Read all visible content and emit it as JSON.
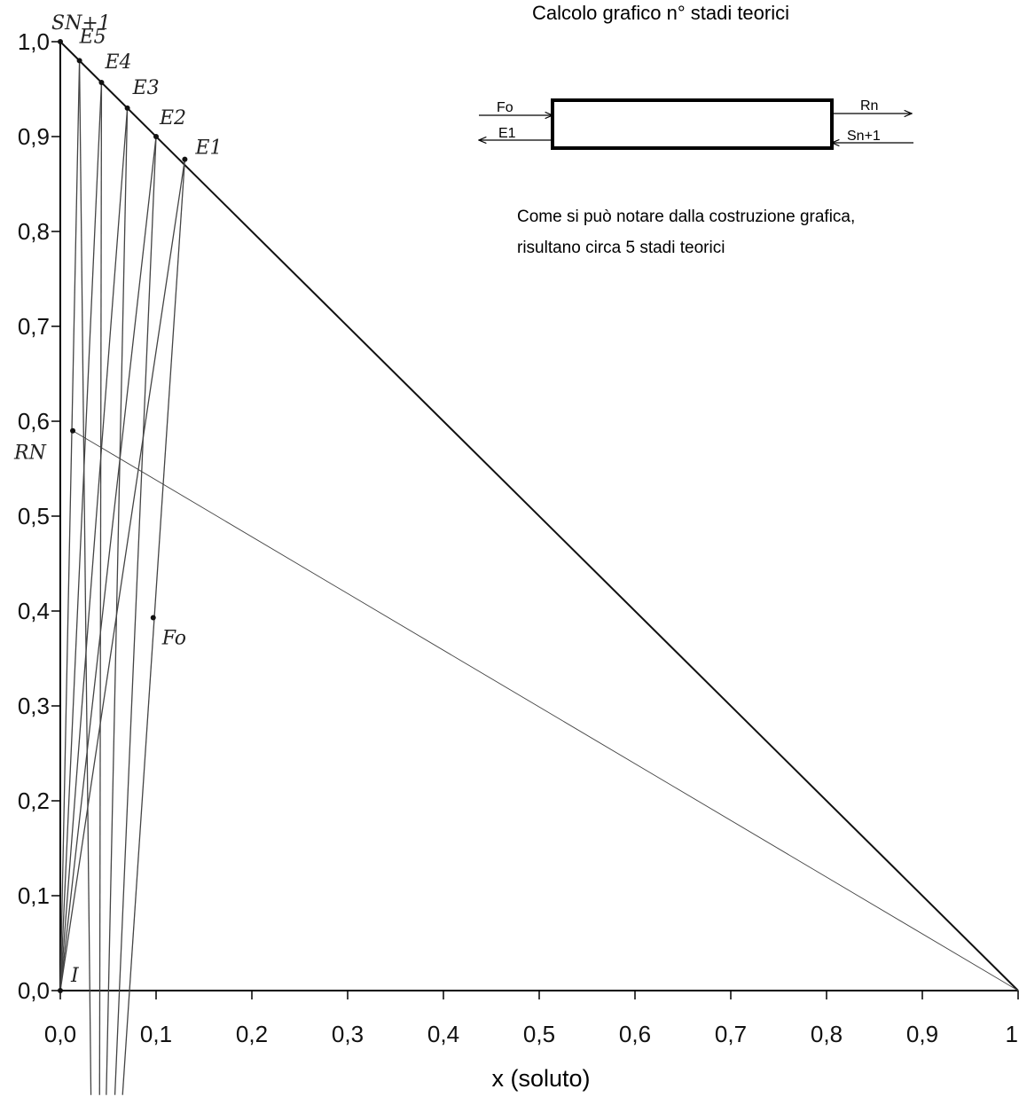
{
  "chart_data": {
    "type": "construction",
    "title": "Calcolo grafico n° stadi teorici",
    "xlabel": "x (soluto)",
    "xlim": [
      0,
      1
    ],
    "ylim": [
      0,
      1
    ],
    "xticks": [
      {
        "value": 0,
        "label": "0,0"
      },
      {
        "value": 0.1,
        "label": "0,1"
      },
      {
        "value": 0.2,
        "label": "0,2"
      },
      {
        "value": 0.3,
        "label": "0,3"
      },
      {
        "value": 0.4,
        "label": "0,4"
      },
      {
        "value": 0.5,
        "label": "0,5"
      },
      {
        "value": 0.6,
        "label": "0,6"
      },
      {
        "value": 0.7,
        "label": "0,7"
      },
      {
        "value": 0.8,
        "label": "0,8"
      },
      {
        "value": 0.9,
        "label": "0,9"
      },
      1
    ],
    "yticks": [
      {
        "value": 0,
        "label": "0,0"
      },
      {
        "value": 0.1,
        "label": "0,1"
      },
      {
        "value": 0.2,
        "label": "0,2"
      },
      {
        "value": 0.3,
        "label": "0,3"
      },
      {
        "value": 0.4,
        "label": "0,4"
      },
      {
        "value": 0.5,
        "label": "0,5"
      },
      {
        "value": 0.6,
        "label": "0,6"
      },
      {
        "value": 0.7,
        "label": "0,7"
      },
      {
        "value": 0.8,
        "label": "0,8"
      },
      {
        "value": 0.9,
        "label": "0,9"
      },
      {
        "value": 1,
        "label": "1,0"
      }
    ],
    "points": [
      {
        "label": "SN+1",
        "x": 0,
        "y": 1
      },
      {
        "label": "E5",
        "x": 0.02,
        "y": 0.98
      },
      {
        "label": "E4",
        "x": 0.043,
        "y": 0.957
      },
      {
        "label": "E3",
        "x": 0.07,
        "y": 0.93
      },
      {
        "label": "E2",
        "x": 0.1,
        "y": 0.9
      },
      {
        "label": "E1",
        "x": 0.13,
        "y": 0.876
      },
      {
        "label": "RN",
        "x": 0.013,
        "y": 0.59
      },
      {
        "label": "Fo",
        "x": 0.097,
        "y": 0.393
      },
      {
        "label": "I",
        "x": 0,
        "y": 0
      }
    ],
    "lines": [
      {
        "x": [
          0,
          1
        ],
        "y": [
          1,
          0
        ]
      },
      {
        "x": [
          0.013,
          1
        ],
        "y": [
          0.59,
          0
        ]
      },
      {
        "x": [
          0.13,
          0.065
        ],
        "y": [
          0.876,
          -0.11
        ]
      },
      {
        "x": [
          0.1,
          0.057
        ],
        "y": [
          0.9,
          -0.11
        ]
      },
      {
        "x": [
          0.07,
          0.048
        ],
        "y": [
          0.93,
          -0.11
        ]
      },
      {
        "x": [
          0.043,
          0.041
        ],
        "y": [
          0.957,
          -0.11
        ]
      },
      {
        "x": [
          0.02,
          0.032
        ],
        "y": [
          0.98,
          -0.11
        ]
      },
      {
        "x": [
          0,
          0.13
        ],
        "y": [
          0,
          0.876
        ]
      },
      {
        "x": [
          0,
          0.1
        ],
        "y": [
          0,
          0.9
        ]
      },
      {
        "x": [
          0,
          0.07
        ],
        "y": [
          0,
          0.93
        ]
      },
      {
        "x": [
          0,
          0.043
        ],
        "y": [
          0,
          0.957
        ]
      },
      {
        "x": [
          0,
          0.02
        ],
        "y": [
          0,
          0.98
        ]
      }
    ],
    "scheme": {
      "in_left": "Fo",
      "out_left": "E1",
      "out_right": "Rn",
      "in_right": "Sn+1"
    },
    "note": [
      "Come si può notare dalla costruzione grafica,",
      "risultano circa 5 stadi teorici"
    ]
  }
}
